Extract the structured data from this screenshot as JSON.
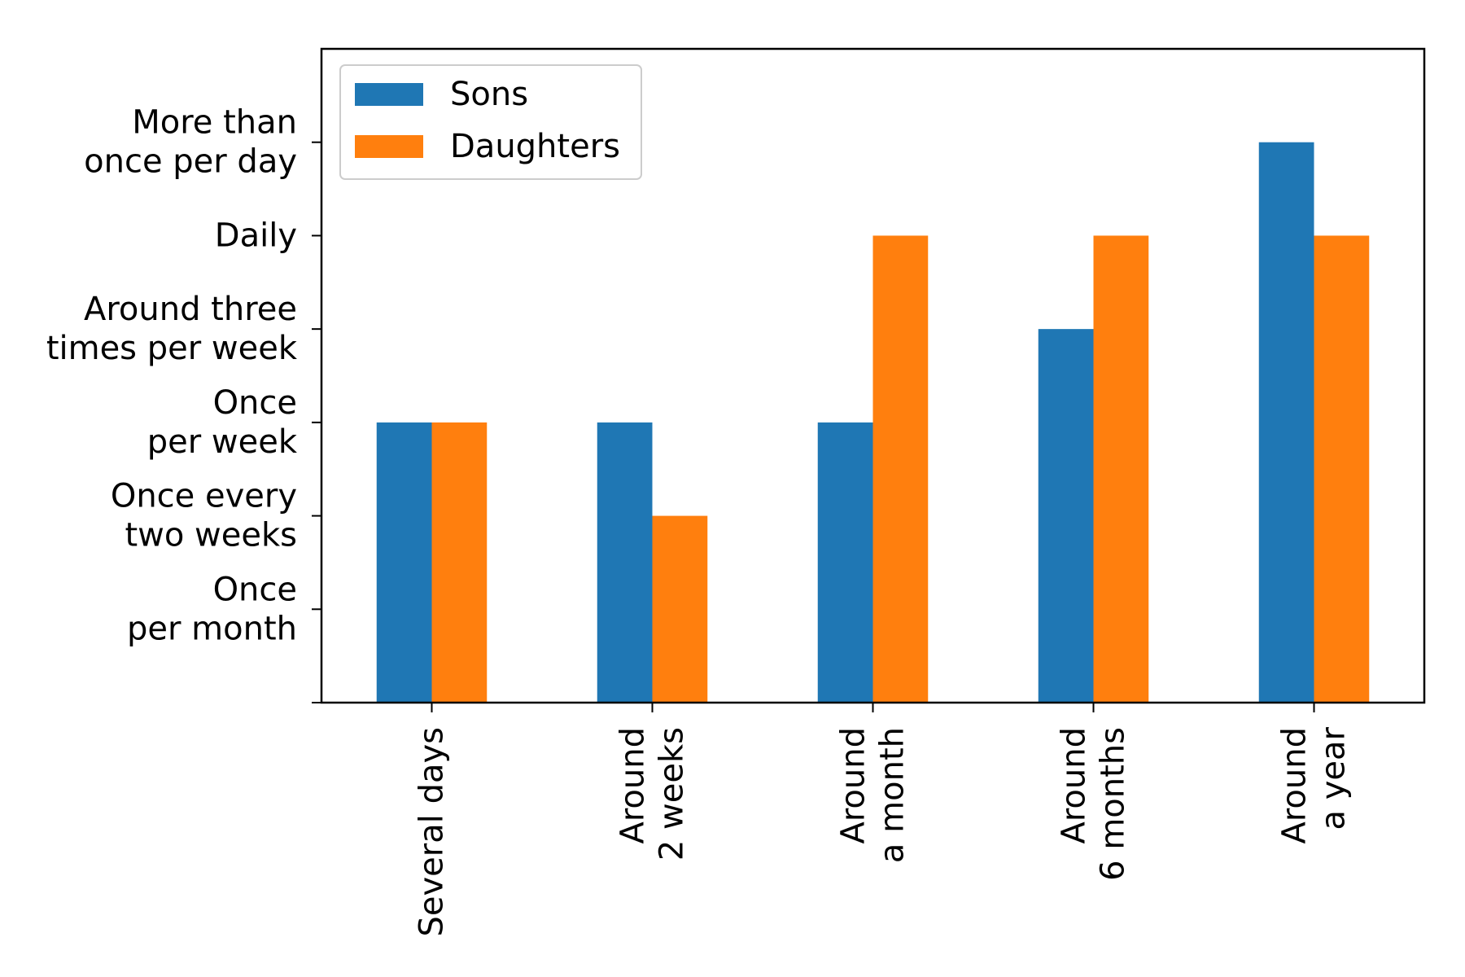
{
  "chart_data": {
    "type": "bar",
    "categories": [
      [
        "Several days"
      ],
      [
        "Around",
        "2 weeks"
      ],
      [
        "Around",
        "a month"
      ],
      [
        "Around",
        "6 months"
      ],
      [
        "Around",
        "a year"
      ]
    ],
    "y_levels": [
      [
        "Once",
        "per month"
      ],
      [
        "Once every",
        "two weeks"
      ],
      [
        "Once",
        "per week"
      ],
      [
        "Around three",
        "times per week"
      ],
      [
        "Daily"
      ],
      [
        "More than",
        "once per day"
      ]
    ],
    "ylim": [
      0,
      7
    ],
    "series": [
      {
        "name": "Sons",
        "color": "#1f77b4",
        "values": [
          3,
          3,
          3,
          4,
          6
        ]
      },
      {
        "name": "Daughters",
        "color": "#ff7f0e",
        "values": [
          3,
          2,
          5,
          5,
          5
        ]
      }
    ],
    "legend_position": "top-left",
    "grid": false,
    "title": "",
    "xlabel": "",
    "ylabel": ""
  }
}
